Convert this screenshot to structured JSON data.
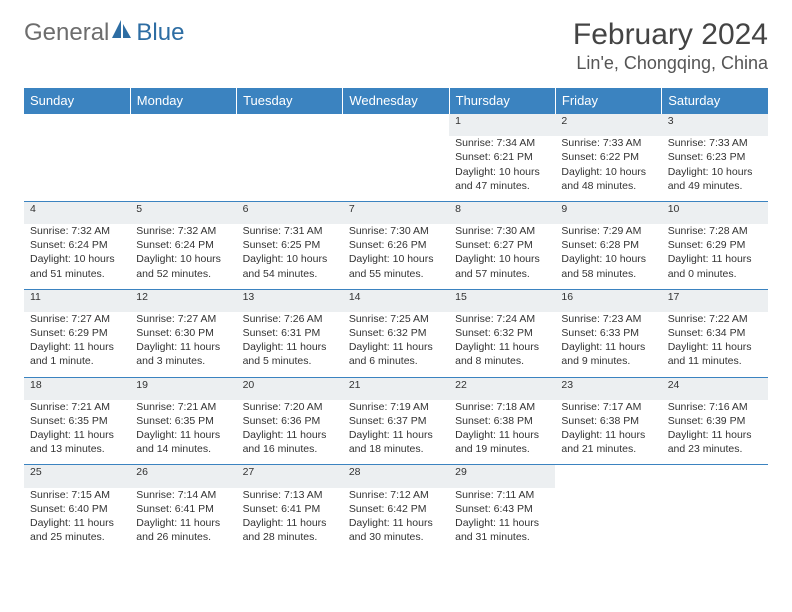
{
  "brand": {
    "part1": "General",
    "part2": "Blue"
  },
  "colors": {
    "header_bg": "#3b83c0",
    "header_text": "#ffffff",
    "daynum_bg": "#eceff1",
    "border": "#3b83c0",
    "brand_gray": "#6d6d6d",
    "brand_blue": "#2d6da3"
  },
  "title": "February 2024",
  "location": "Lin'e, Chongqing, China",
  "weekdays": [
    "Sunday",
    "Monday",
    "Tuesday",
    "Wednesday",
    "Thursday",
    "Friday",
    "Saturday"
  ],
  "weeks": [
    [
      null,
      null,
      null,
      null,
      {
        "n": "1",
        "sr": "Sunrise: 7:34 AM",
        "ss": "Sunset: 6:21 PM",
        "d1": "Daylight: 10 hours",
        "d2": "and 47 minutes."
      },
      {
        "n": "2",
        "sr": "Sunrise: 7:33 AM",
        "ss": "Sunset: 6:22 PM",
        "d1": "Daylight: 10 hours",
        "d2": "and 48 minutes."
      },
      {
        "n": "3",
        "sr": "Sunrise: 7:33 AM",
        "ss": "Sunset: 6:23 PM",
        "d1": "Daylight: 10 hours",
        "d2": "and 49 minutes."
      }
    ],
    [
      {
        "n": "4",
        "sr": "Sunrise: 7:32 AM",
        "ss": "Sunset: 6:24 PM",
        "d1": "Daylight: 10 hours",
        "d2": "and 51 minutes."
      },
      {
        "n": "5",
        "sr": "Sunrise: 7:32 AM",
        "ss": "Sunset: 6:24 PM",
        "d1": "Daylight: 10 hours",
        "d2": "and 52 minutes."
      },
      {
        "n": "6",
        "sr": "Sunrise: 7:31 AM",
        "ss": "Sunset: 6:25 PM",
        "d1": "Daylight: 10 hours",
        "d2": "and 54 minutes."
      },
      {
        "n": "7",
        "sr": "Sunrise: 7:30 AM",
        "ss": "Sunset: 6:26 PM",
        "d1": "Daylight: 10 hours",
        "d2": "and 55 minutes."
      },
      {
        "n": "8",
        "sr": "Sunrise: 7:30 AM",
        "ss": "Sunset: 6:27 PM",
        "d1": "Daylight: 10 hours",
        "d2": "and 57 minutes."
      },
      {
        "n": "9",
        "sr": "Sunrise: 7:29 AM",
        "ss": "Sunset: 6:28 PM",
        "d1": "Daylight: 10 hours",
        "d2": "and 58 minutes."
      },
      {
        "n": "10",
        "sr": "Sunrise: 7:28 AM",
        "ss": "Sunset: 6:29 PM",
        "d1": "Daylight: 11 hours",
        "d2": "and 0 minutes."
      }
    ],
    [
      {
        "n": "11",
        "sr": "Sunrise: 7:27 AM",
        "ss": "Sunset: 6:29 PM",
        "d1": "Daylight: 11 hours",
        "d2": "and 1 minute."
      },
      {
        "n": "12",
        "sr": "Sunrise: 7:27 AM",
        "ss": "Sunset: 6:30 PM",
        "d1": "Daylight: 11 hours",
        "d2": "and 3 minutes."
      },
      {
        "n": "13",
        "sr": "Sunrise: 7:26 AM",
        "ss": "Sunset: 6:31 PM",
        "d1": "Daylight: 11 hours",
        "d2": "and 5 minutes."
      },
      {
        "n": "14",
        "sr": "Sunrise: 7:25 AM",
        "ss": "Sunset: 6:32 PM",
        "d1": "Daylight: 11 hours",
        "d2": "and 6 minutes."
      },
      {
        "n": "15",
        "sr": "Sunrise: 7:24 AM",
        "ss": "Sunset: 6:32 PM",
        "d1": "Daylight: 11 hours",
        "d2": "and 8 minutes."
      },
      {
        "n": "16",
        "sr": "Sunrise: 7:23 AM",
        "ss": "Sunset: 6:33 PM",
        "d1": "Daylight: 11 hours",
        "d2": "and 9 minutes."
      },
      {
        "n": "17",
        "sr": "Sunrise: 7:22 AM",
        "ss": "Sunset: 6:34 PM",
        "d1": "Daylight: 11 hours",
        "d2": "and 11 minutes."
      }
    ],
    [
      {
        "n": "18",
        "sr": "Sunrise: 7:21 AM",
        "ss": "Sunset: 6:35 PM",
        "d1": "Daylight: 11 hours",
        "d2": "and 13 minutes."
      },
      {
        "n": "19",
        "sr": "Sunrise: 7:21 AM",
        "ss": "Sunset: 6:35 PM",
        "d1": "Daylight: 11 hours",
        "d2": "and 14 minutes."
      },
      {
        "n": "20",
        "sr": "Sunrise: 7:20 AM",
        "ss": "Sunset: 6:36 PM",
        "d1": "Daylight: 11 hours",
        "d2": "and 16 minutes."
      },
      {
        "n": "21",
        "sr": "Sunrise: 7:19 AM",
        "ss": "Sunset: 6:37 PM",
        "d1": "Daylight: 11 hours",
        "d2": "and 18 minutes."
      },
      {
        "n": "22",
        "sr": "Sunrise: 7:18 AM",
        "ss": "Sunset: 6:38 PM",
        "d1": "Daylight: 11 hours",
        "d2": "and 19 minutes."
      },
      {
        "n": "23",
        "sr": "Sunrise: 7:17 AM",
        "ss": "Sunset: 6:38 PM",
        "d1": "Daylight: 11 hours",
        "d2": "and 21 minutes."
      },
      {
        "n": "24",
        "sr": "Sunrise: 7:16 AM",
        "ss": "Sunset: 6:39 PM",
        "d1": "Daylight: 11 hours",
        "d2": "and 23 minutes."
      }
    ],
    [
      {
        "n": "25",
        "sr": "Sunrise: 7:15 AM",
        "ss": "Sunset: 6:40 PM",
        "d1": "Daylight: 11 hours",
        "d2": "and 25 minutes."
      },
      {
        "n": "26",
        "sr": "Sunrise: 7:14 AM",
        "ss": "Sunset: 6:41 PM",
        "d1": "Daylight: 11 hours",
        "d2": "and 26 minutes."
      },
      {
        "n": "27",
        "sr": "Sunrise: 7:13 AM",
        "ss": "Sunset: 6:41 PM",
        "d1": "Daylight: 11 hours",
        "d2": "and 28 minutes."
      },
      {
        "n": "28",
        "sr": "Sunrise: 7:12 AM",
        "ss": "Sunset: 6:42 PM",
        "d1": "Daylight: 11 hours",
        "d2": "and 30 minutes."
      },
      {
        "n": "29",
        "sr": "Sunrise: 7:11 AM",
        "ss": "Sunset: 6:43 PM",
        "d1": "Daylight: 11 hours",
        "d2": "and 31 minutes."
      },
      null,
      null
    ]
  ]
}
